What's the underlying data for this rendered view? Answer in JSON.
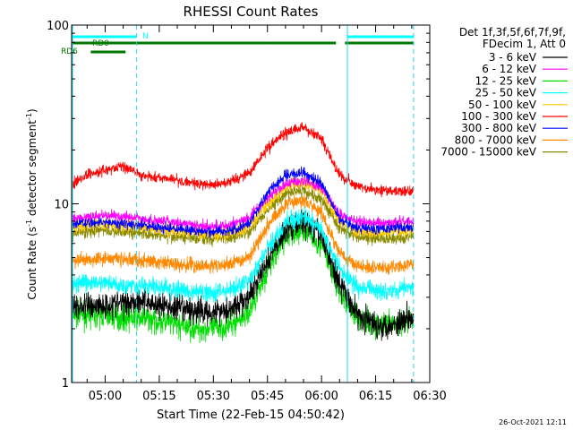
{
  "chart_data": {
    "type": "line",
    "title": "RHESSI Count Rates",
    "xlabel": "Start Time (22-Feb-15 04:50:42)",
    "ylabel": "Count Rate (s⁻¹ detector segment⁻¹)",
    "ylabel_parts": [
      "Count Rate (s",
      "-1",
      " detector segment",
      "-1",
      ")"
    ],
    "y_scale": "log",
    "ylim": [
      1,
      100
    ],
    "y_ticks": [
      "1",
      "10",
      "100"
    ],
    "xlim": [
      "04:50:42",
      "06:30"
    ],
    "x_ticks": [
      "05:00",
      "05:15",
      "05:30",
      "05:45",
      "06:00",
      "06:15",
      "06:30"
    ],
    "timestamp": "26-Oct-2021 12:11",
    "legend_header": [
      "Det 1f,3f,5f,6f,7f,9f,",
      "FDecim 1, Att 0"
    ],
    "legend_position": "right",
    "x": [
      "04:50",
      "04:55",
      "05:00",
      "05:05",
      "05:10",
      "05:15",
      "05:20",
      "05:25",
      "05:30",
      "05:35",
      "05:40",
      "05:45",
      "05:50",
      "05:55",
      "06:00",
      "06:05",
      "06:10",
      "06:15",
      "06:20",
      "06:25"
    ],
    "series": [
      {
        "name": "3 - 6 keV",
        "color": "#000000",
        "values": [
          2.6,
          2.7,
          2.7,
          2.8,
          2.9,
          2.7,
          2.6,
          2.5,
          2.5,
          2.6,
          3.0,
          4.8,
          7.2,
          8.0,
          6.6,
          3.6,
          2.4,
          2.1,
          2.1,
          2.4
        ]
      },
      {
        "name": "6 - 12 keV",
        "color": "#ff00ff",
        "values": [
          8.3,
          8.4,
          8.6,
          8.5,
          8.3,
          8.0,
          7.8,
          7.6,
          7.5,
          7.6,
          8.4,
          10.8,
          12.8,
          13.5,
          12.3,
          8.8,
          7.9,
          7.8,
          7.9,
          8.1
        ]
      },
      {
        "name": "12 - 25 keV",
        "color": "#00dd00",
        "values": [
          2.4,
          2.4,
          2.4,
          2.3,
          2.3,
          2.2,
          2.1,
          2.0,
          2.0,
          2.1,
          2.5,
          4.3,
          6.5,
          7.2,
          5.8,
          3.2,
          2.3,
          2.1,
          2.1,
          2.3
        ]
      },
      {
        "name": "25 - 50 keV",
        "color": "#00ffff",
        "values": [
          3.5,
          3.6,
          3.6,
          3.5,
          3.5,
          3.4,
          3.3,
          3.2,
          3.2,
          3.3,
          3.7,
          5.6,
          7.8,
          8.5,
          7.1,
          4.3,
          3.4,
          3.3,
          3.3,
          3.4
        ]
      },
      {
        "name": "50 - 100 keV",
        "color": "#ffcc00",
        "values": [
          7.4,
          7.6,
          7.7,
          7.6,
          7.4,
          7.2,
          7.0,
          6.8,
          6.8,
          6.9,
          7.6,
          10.0,
          12.5,
          13.2,
          11.8,
          8.0,
          7.0,
          6.9,
          7.0,
          7.2
        ]
      },
      {
        "name": "100 - 300 keV",
        "color": "#ff0000",
        "values": [
          12.5,
          14.5,
          15.5,
          16.0,
          14.5,
          14.0,
          13.5,
          13.0,
          12.8,
          13.3,
          15.0,
          20.5,
          25.0,
          27.0,
          23.0,
          14.5,
          12.5,
          12.0,
          11.8,
          11.8
        ]
      },
      {
        "name": "300 - 800 keV",
        "color": "#0000ff",
        "values": [
          7.6,
          7.8,
          7.9,
          7.8,
          7.6,
          7.4,
          7.2,
          7.0,
          7.0,
          7.1,
          7.8,
          11.5,
          14.5,
          15.0,
          13.0,
          8.2,
          7.3,
          7.2,
          7.3,
          7.4
        ]
      },
      {
        "name": "800 - 7000 keV",
        "color": "#ff8800",
        "values": [
          4.7,
          4.9,
          5.0,
          4.9,
          4.8,
          4.7,
          4.6,
          4.5,
          4.5,
          4.6,
          5.1,
          7.6,
          10.0,
          10.5,
          8.8,
          5.3,
          4.5,
          4.4,
          4.4,
          4.6
        ]
      },
      {
        "name": "7000 - 15000 keV",
        "color": "#888800",
        "values": [
          6.8,
          7.0,
          7.1,
          7.0,
          6.9,
          6.7,
          6.5,
          6.4,
          6.4,
          6.5,
          7.0,
          9.2,
          11.5,
          12.0,
          10.5,
          7.3,
          6.5,
          6.4,
          6.4,
          6.6
        ]
      }
    ],
    "attenuator_bars": [
      {
        "label": "N",
        "color": "#00ffff",
        "segments": [
          [
            "04:50:42",
            "05:08:40"
          ],
          [
            "06:07:10",
            "06:25:30"
          ]
        ]
      },
      {
        "label": "RD0",
        "color": "#007700",
        "segments": [
          [
            "04:50:42",
            "05:08:40"
          ],
          [
            "05:08:40",
            "05:45:10"
          ],
          [
            "05:45:10",
            "06:04:00"
          ],
          [
            "06:06:30",
            "06:25:30"
          ]
        ]
      },
      {
        "label": "RD6",
        "color": "#007700",
        "segments": [
          [
            "04:56:00",
            "05:05:40"
          ]
        ]
      }
    ],
    "vertical_markers": [
      "04:50:42",
      "05:08:40",
      "06:07:10",
      "06:25:30"
    ],
    "grid": false
  }
}
